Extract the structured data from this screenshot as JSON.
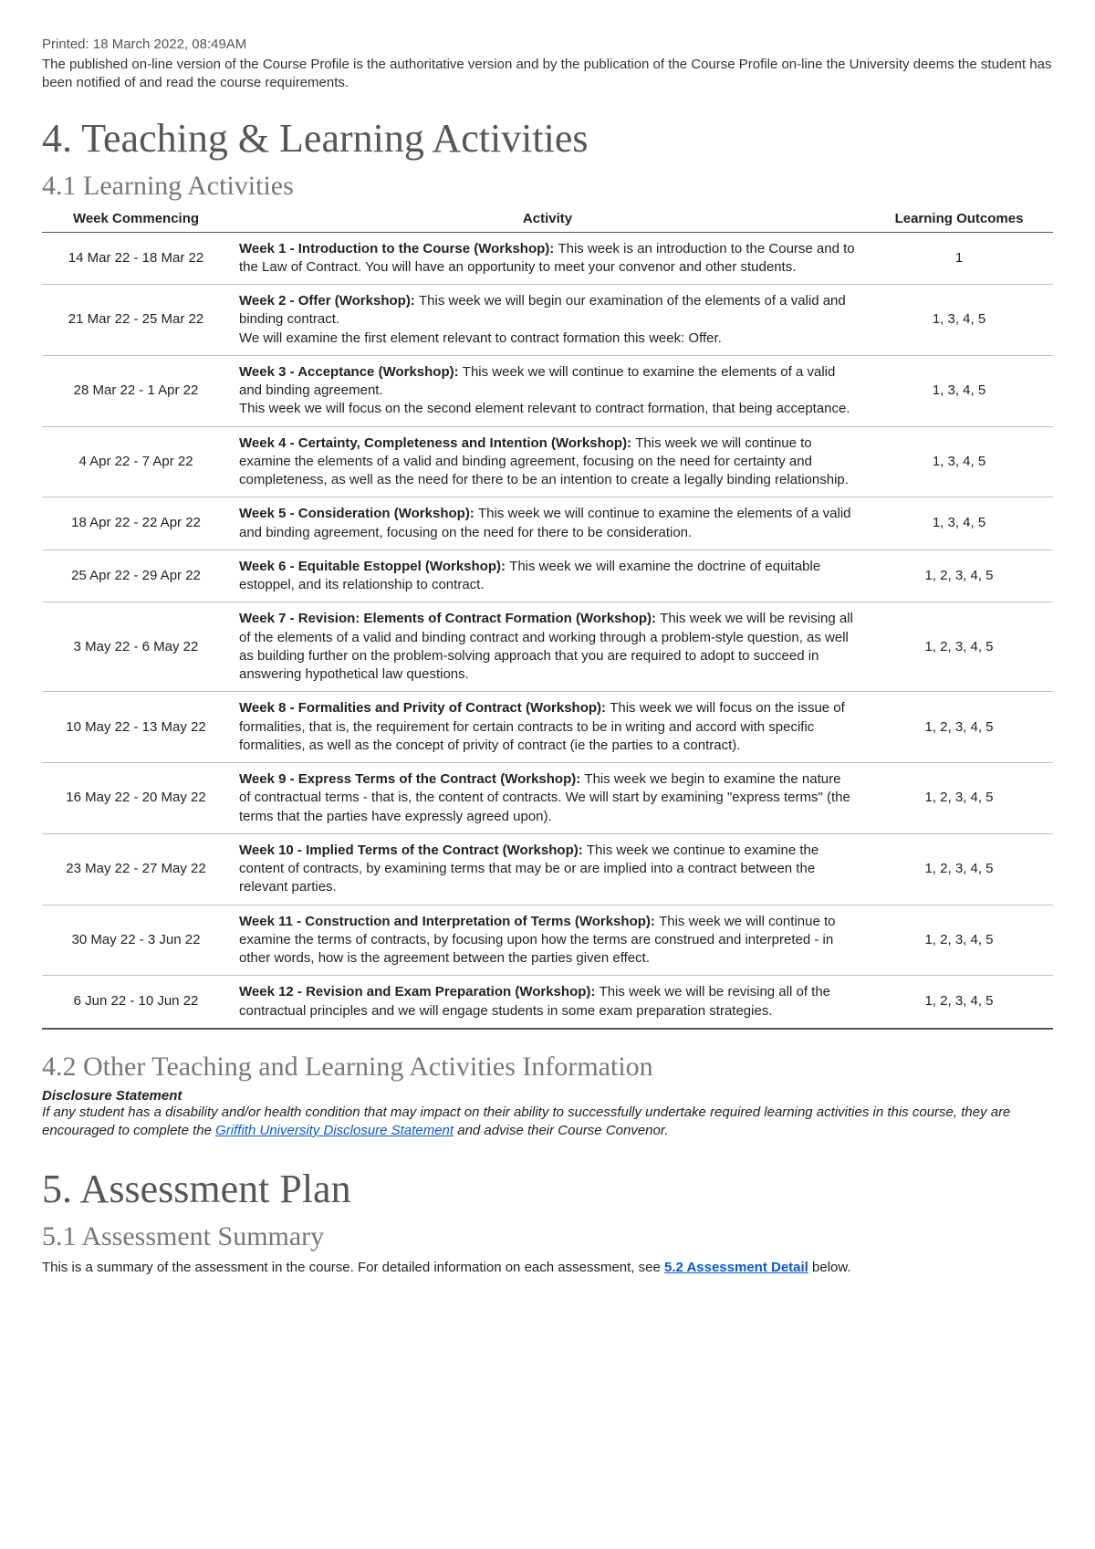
{
  "header": {
    "printed": "Printed: 18 March 2022, 08:49AM",
    "preamble": "The published on-line version of the Course Profile is the authoritative version and by the publication of the Course Profile on-line the University deems the student has been notified of and read the course requirements."
  },
  "section4": {
    "title": "4. Teaching & Learning Activities",
    "sub41": {
      "title": "4.1 Learning Activities",
      "columns": {
        "week": "Week Commencing",
        "activity": "Activity",
        "outcomes": "Learning Outcomes"
      },
      "rows": [
        {
          "week": "14 Mar 22 - 18 Mar 22",
          "title": "Week 1 - Introduction to the Course (Workshop): ",
          "body": "This week is an introduction to the Course and to the Law of Contract. You will have an opportunity to meet your convenor and other students.",
          "outcomes": "1"
        },
        {
          "week": "21 Mar 22 - 25 Mar 22",
          "title": "Week 2 - Offer (Workshop): ",
          "body": "This week we will begin our examination of the elements of a valid and binding contract.\nWe will examine the first element relevant to contract formation this week: Offer.",
          "outcomes": "1, 3, 4, 5"
        },
        {
          "week": "28 Mar 22 - 1 Apr 22",
          "title": "Week 3 - Acceptance (Workshop): ",
          "body": "This week we will continue to examine the elements of a valid and binding agreement.\nThis week we will focus on the second element relevant to contract formation, that being acceptance.",
          "outcomes": "1, 3, 4, 5"
        },
        {
          "week": "4 Apr 22 - 7 Apr 22",
          "title": "Week 4 - Certainty, Completeness and Intention (Workshop): ",
          "body": "This week we will continue to examine the elements of a valid and binding agreement, focusing on the need for certainty and completeness, as well as the need for there to be an intention to create a legally binding relationship.",
          "outcomes": "1, 3, 4, 5"
        },
        {
          "week": "18 Apr 22 - 22 Apr 22",
          "title": "Week 5 - Consideration (Workshop): ",
          "body": "This week we will continue to examine the elements of a valid and binding agreement, focusing on the need for there to be consideration.",
          "outcomes": "1, 3, 4, 5"
        },
        {
          "week": "25 Apr 22 - 29 Apr 22",
          "title": "Week 6 - Equitable Estoppel (Workshop): ",
          "body": "This week we will examine the doctrine of equitable estoppel, and its relationship to contract.",
          "outcomes": "1, 2, 3, 4, 5"
        },
        {
          "week": "3 May 22 - 6 May 22",
          "title": "Week 7 - Revision: Elements of Contract Formation (Workshop): ",
          "body": "This week we will be revising all of the elements of a valid and binding contract and working through a problem-style question, as well as building further on the problem-solving approach that you are required to adopt to succeed in answering hypothetical law questions.",
          "outcomes": "1, 2, 3, 4, 5"
        },
        {
          "week": "10 May 22 - 13 May 22",
          "title": "Week 8 - Formalities and Privity of Contract (Workshop): ",
          "body": "This week we will focus on the issue of formalities, that is, the requirement for certain contracts to be in writing and accord with specific formalities, as well as the concept of privity of contract (ie the parties to a contract).",
          "outcomes": "1, 2, 3, 4, 5"
        },
        {
          "week": "16 May 22 - 20 May 22",
          "title": "Week 9 - Express Terms of the Contract (Workshop): ",
          "body": "This week we begin to examine the nature of contractual terms - that is, the content of contracts. We will start by examining \"express terms\" (the terms that the parties have expressly agreed upon).",
          "outcomes": "1, 2, 3, 4, 5"
        },
        {
          "week": "23 May 22 - 27 May 22",
          "title": "Week 10 - Implied Terms of the Contract (Workshop): ",
          "body": "This week we continue to examine the content of contracts, by examining terms that may be or are implied into a contract between the relevant parties.",
          "outcomes": "1, 2, 3, 4, 5"
        },
        {
          "week": "30 May 22 - 3 Jun 22",
          "title": "Week 11 - Construction and Interpretation of Terms (Workshop): ",
          "body": "This week we will continue to examine the terms of contracts, by focusing upon how the terms are construed and interpreted - in other words, how is the agreement between the parties given effect.",
          "outcomes": "1, 2, 3, 4, 5"
        },
        {
          "week": "6 Jun 22 - 10 Jun 22",
          "title": "Week 12 - Revision and Exam Preparation (Workshop): ",
          "body": "This week we will be revising all of the contractual principles and we will engage students in some exam preparation strategies.",
          "outcomes": "1, 2, 3, 4, 5"
        }
      ]
    },
    "sub42": {
      "title": "4.2 Other Teaching and Learning Activities Information",
      "disclosure_head": "Disclosure Statement",
      "disclosure_pre": "If any student has a disability and/or health condition that may impact on their ability to successfully undertake required learning activities in this course, they are encouraged to complete the ",
      "disclosure_link": "Griffith University Disclosure Statement",
      "disclosure_post": " and advise their Course Convenor."
    }
  },
  "section5": {
    "title": "5. Assessment Plan",
    "sub51": {
      "title": "5.1 Assessment Summary",
      "text_pre": "This is a summary of the assessment in the course. For detailed information on each assessment, see ",
      "link": "5.2 Assessment Detail",
      "text_post": " below."
    }
  }
}
